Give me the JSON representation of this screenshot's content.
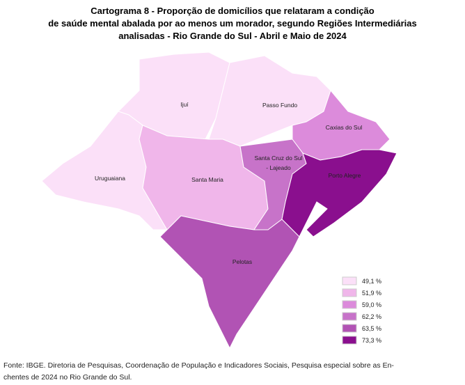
{
  "title": [
    "Cartograma 8 - Proporção de domicílios que relataram a condição",
    "de saúde mental abalada por ao menos um morador, segundo Regiões Intermediárias",
    "analisadas - Rio Grande do Sul - Abril e Maio de 2024"
  ],
  "regions": [
    {
      "name": "Ijuí",
      "color": "#fbe0f8"
    },
    {
      "name": "Passo Fundo",
      "color": "#fbe0f8"
    },
    {
      "name": "Uruguaiana",
      "color": "#fbe0f8"
    },
    {
      "name": "Santa Maria",
      "color": "#f0b6ea"
    },
    {
      "name": "Caxias do Sul",
      "color": "#dc8bdb"
    },
    {
      "name": "Santa Cruz do Sul",
      "color": "#c773c9"
    },
    {
      "name": "Porto Alegre",
      "color": "#8a0f8e"
    },
    {
      "name": "Pelotas",
      "color": "#b153b4"
    }
  ],
  "lajeado": "- Lajeado",
  "legend": [
    {
      "label": "49,1 %",
      "color": "#fbe0f8"
    },
    {
      "label": "51,9 %",
      "color": "#f0b6ea"
    },
    {
      "label": "59,0 %",
      "color": "#dc8bdb"
    },
    {
      "label": "62,2 %",
      "color": "#c773c9"
    },
    {
      "label": "63,5 %",
      "color": "#b153b4"
    },
    {
      "label": "73,3 %",
      "color": "#8a0f8e"
    }
  ],
  "source": [
    "Fonte: IBGE. Diretoria de Pesquisas, Coordenação de População e Indicadores Sociais, Pesquisa especial sobre as En-",
    "chentes de 2024 no Rio Grande do Sul."
  ]
}
